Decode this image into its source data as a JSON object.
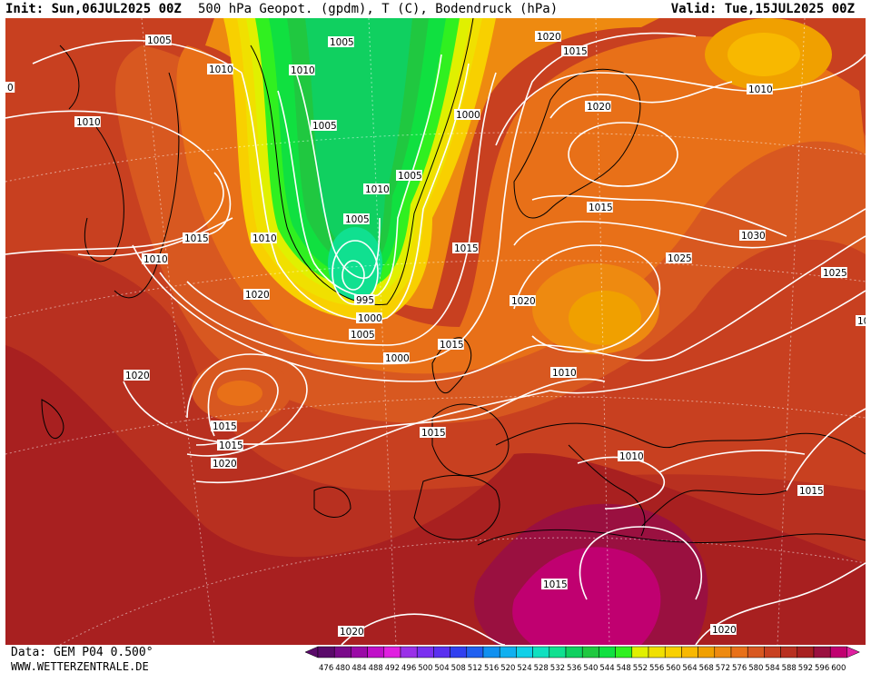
{
  "header": {
    "init": "Init: Sun,06JUL2025 00Z",
    "title": "500 hPa Geopot. (gpdm), T (C), Bodendruck (hPa)",
    "valid": "Valid: Tue,15JUL2025 00Z"
  },
  "footer": {
    "data_source": "Data: GEM P04 0.500°",
    "website": "WWW.WETTERZENTRALE.DE"
  },
  "colors": {
    "c476": "#5a0a6a",
    "c480": "#7a0a8a",
    "c484": "#9a0aa6",
    "c488": "#c010c8",
    "c492": "#e020e0",
    "c496": "#9a30e8",
    "c500": "#7a30f0",
    "c504": "#5a30f0",
    "c508": "#3040f0",
    "c512": "#2060f0",
    "c516": "#1090f0",
    "c520": "#10b0f0",
    "c524": "#10d0e8",
    "c528": "#10e0c0",
    "c532": "#10e090",
    "c536": "#10d060",
    "c540": "#20c840",
    "c544": "#10e040",
    "c548": "#30f020",
    "c552": "#e0f000",
    "c556": "#f0e000",
    "c560": "#f8d000",
    "c564": "#f8b800",
    "c568": "#f0a000",
    "c572": "#ee8a10",
    "c576": "#e87018",
    "c580": "#d85820",
    "c584": "#c84020",
    "c588": "#b83020",
    "c592": "#a82020",
    "c596": "#9a1040",
    "c600": "#c00070"
  },
  "scale_labels": [
    "476",
    "480",
    "484",
    "488",
    "492",
    "496",
    "500",
    "504",
    "508",
    "512",
    "516",
    "520",
    "524",
    "528",
    "532",
    "536",
    "540",
    "544",
    "548",
    "552",
    "556",
    "560",
    "564",
    "568",
    "572",
    "576",
    "580",
    "584",
    "588",
    "592",
    "596",
    "600"
  ],
  "isobar_labels": [
    "1005",
    "1010",
    "1010",
    "1010",
    "1005",
    "1005",
    "1000",
    "1005",
    "1010",
    "1005",
    "995",
    "1000",
    "1010",
    "1015",
    "1020",
    "1010",
    "1015",
    "1020",
    "1015",
    "1020",
    "1025",
    "1030",
    "1025",
    "1020",
    "1020",
    "1015",
    "1015",
    "1015",
    "1015",
    "1010",
    "1010",
    "1015",
    "1015",
    "1020",
    "1020",
    "10",
    "0",
    "1010",
    "1015",
    "1020",
    "1005",
    "1000"
  ]
}
